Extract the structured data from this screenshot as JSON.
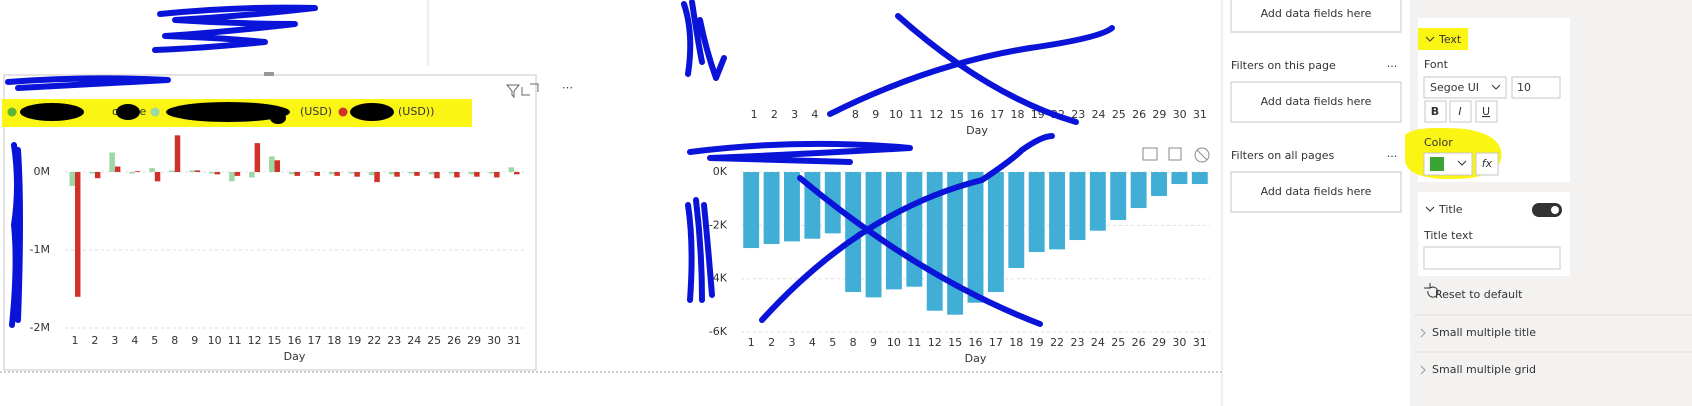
{
  "chart_data": [
    {
      "type": "bar",
      "x_title": "Day",
      "categories": [
        1,
        2,
        3,
        4,
        5,
        8,
        9,
        10,
        11,
        12,
        15,
        16,
        17,
        18,
        19,
        22,
        23,
        24,
        25,
        26,
        29,
        30,
        31
      ],
      "series": [
        {
          "name": "olume",
          "color": "#5cb531"
        },
        {
          "name": "(USD)",
          "color": "#9dd7a6",
          "values": [
            -0.18,
            -0.02,
            0.25,
            -0.02,
            0.05,
            0.02,
            0.02,
            -0.02,
            -0.12,
            -0.07,
            0.2,
            -0.03,
            0.01,
            -0.03,
            -0.02,
            -0.04,
            -0.03,
            -0.02,
            -0.03,
            -0.02,
            -0.03,
            -0.02,
            0.06
          ]
        },
        {
          "name": "(USD))",
          "color": "#d1312b",
          "values": [
            -1.6,
            -0.08,
            0.07,
            0.01,
            -0.12,
            0.47,
            0.02,
            -0.03,
            -0.05,
            0.37,
            0.15,
            -0.05,
            -0.05,
            -0.05,
            -0.06,
            -0.13,
            -0.06,
            -0.05,
            -0.08,
            -0.07,
            -0.06,
            -0.07,
            -0.03
          ]
        }
      ],
      "ylim": [
        -2.09,
        0.41
      ],
      "yticks": [
        {
          "value": 0,
          "label": "0M"
        },
        {
          "value": -1,
          "label": "-1M"
        },
        {
          "value": -2,
          "label": "-2M"
        }
      ],
      "grid": true
    },
    {
      "type": "bar",
      "x_title": "Day",
      "categories": [
        1,
        2,
        3,
        4,
        null,
        8,
        9,
        10,
        11,
        12,
        15,
        16,
        17,
        18,
        19,
        22,
        23,
        24,
        25,
        26,
        29,
        30,
        31
      ]
    },
    {
      "type": "bar",
      "x_title": "Day",
      "categories": [
        1,
        2,
        3,
        4,
        5,
        8,
        9,
        10,
        11,
        12,
        15,
        16,
        17,
        18,
        19,
        22,
        23,
        24,
        25,
        26,
        29,
        30,
        31
      ],
      "series": [
        {
          "color": "#41afd5",
          "values": [
            -2.85,
            -2.7,
            -2.6,
            -2.5,
            -2.3,
            -4.5,
            -4.7,
            -4.4,
            -4.3,
            -5.2,
            -5.35,
            -4.9,
            -4.5,
            -3.6,
            -3.0,
            -2.9,
            -2.55,
            -2.2,
            -1.8,
            -1.35,
            -0.9,
            -0.45,
            -0.45
          ]
        }
      ],
      "ylim": [
        -6.1,
        0.2
      ],
      "yticks": [
        {
          "value": 0,
          "label": "0K"
        },
        {
          "value": -2,
          "label": "-2K"
        },
        {
          "value": -4,
          "label": "-4K"
        },
        {
          "value": -6,
          "label": "-6K"
        }
      ],
      "grid": true
    }
  ],
  "filters": {
    "add_fields": [
      "Add data fields here",
      "Add data fields here",
      "Add data fields here"
    ],
    "this_page": "Filters on this page",
    "all_pages": "Filters on all pages",
    "menu": "..."
  },
  "format": {
    "text_card": "Text",
    "font_label": "Font",
    "font_family": "Segoe UI",
    "font_size": "10",
    "bold": "B",
    "italic": "I",
    "underline": "U",
    "color_label": "Color",
    "fx": "fx",
    "title_card": "Title",
    "toggle": "On",
    "title_text_label": "Title text",
    "reset": "Reset to default",
    "small_multiple_title": "Small multiple title",
    "small_multiple_grid": "Small multiple grid"
  }
}
